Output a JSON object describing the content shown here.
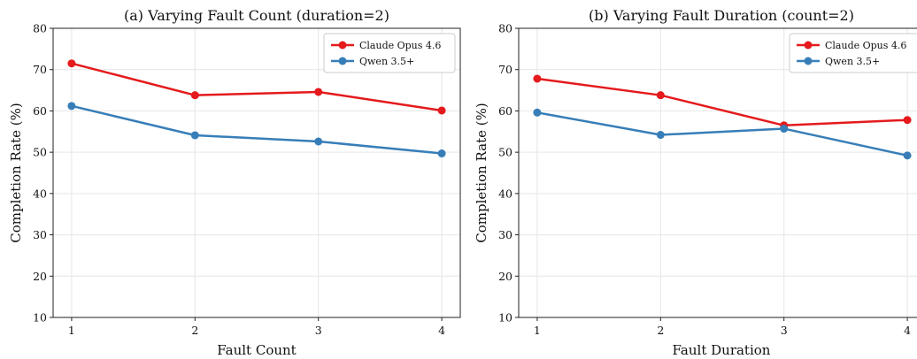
{
  "chart_data": [
    {
      "type": "line",
      "title": "(a) Varying Fault Count (duration=2)",
      "xlabel": "Fault Count",
      "ylabel": "Completion Rate (%)",
      "x": [
        1,
        2,
        3,
        4
      ],
      "xticks": [
        "1",
        "2",
        "3",
        "4"
      ],
      "yticks": [
        "10",
        "20",
        "30",
        "40",
        "50",
        "60",
        "70",
        "80"
      ],
      "ylim": [
        10,
        80
      ],
      "grid": true,
      "legend_position": "top-right",
      "series": [
        {
          "name": "Claude Opus 4.6",
          "color": "#e41a1c",
          "values": [
            71.5,
            63.8,
            64.6,
            60.1
          ]
        },
        {
          "name": "Qwen 3.5+",
          "color": "#377eb8",
          "values": [
            61.2,
            54.1,
            52.6,
            49.7
          ]
        }
      ]
    },
    {
      "type": "line",
      "title": "(b) Varying Fault Duration (count=2)",
      "xlabel": "Fault Duration",
      "ylabel": "Completion Rate (%)",
      "x": [
        1,
        2,
        3,
        4
      ],
      "xticks": [
        "1",
        "2",
        "3",
        "4"
      ],
      "yticks": [
        "10",
        "20",
        "30",
        "40",
        "50",
        "60",
        "70",
        "80"
      ],
      "ylim": [
        10,
        80
      ],
      "grid": true,
      "legend_position": "top-right",
      "series": [
        {
          "name": "Claude Opus 4.6",
          "color": "#e41a1c",
          "values": [
            67.8,
            63.8,
            56.5,
            57.8
          ]
        },
        {
          "name": "Qwen 3.5+",
          "color": "#377eb8",
          "values": [
            59.6,
            54.2,
            55.7,
            49.2
          ]
        }
      ]
    }
  ]
}
